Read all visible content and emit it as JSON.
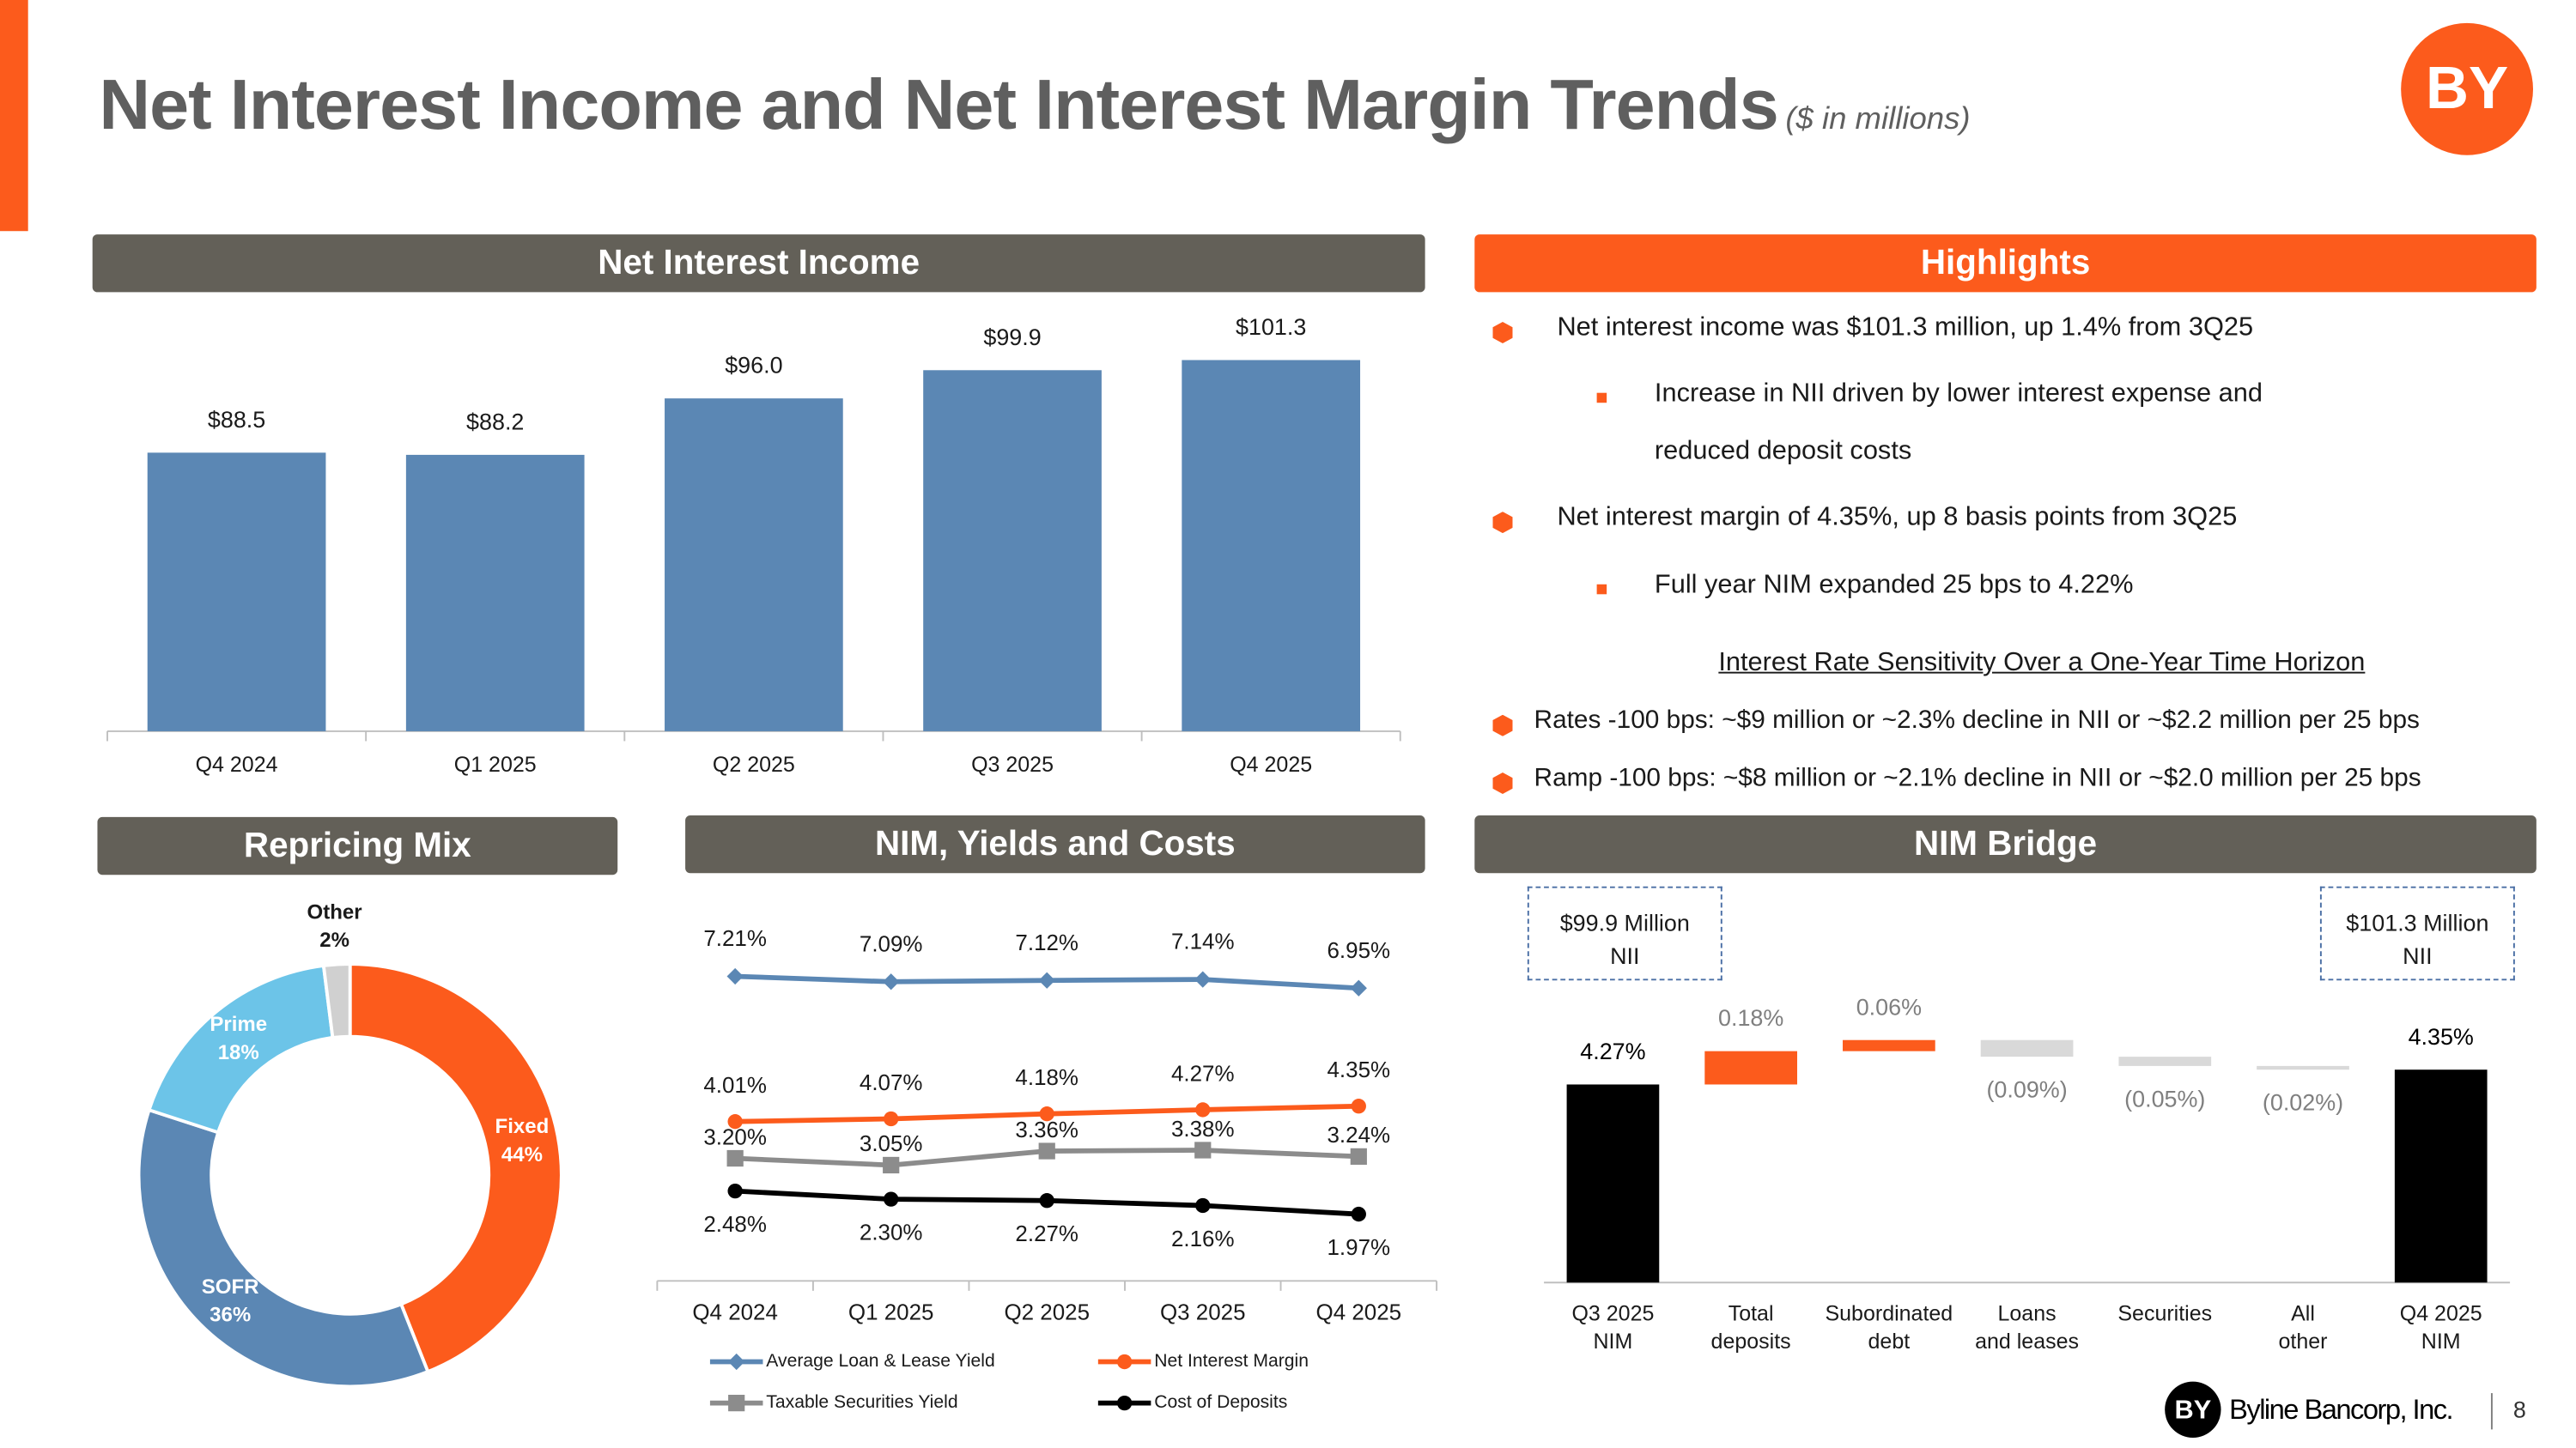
{
  "header": {
    "title": "Net Interest Income and Net Interest Margin Trends",
    "subtitle": "($ in millions)",
    "logo": "BY"
  },
  "highlights": {
    "title": "Highlights",
    "bullets": [
      {
        "text": "Net interest income was $101.3 million, up 1.4% from 3Q25",
        "sub": [
          "Increase in NII driven by lower interest expense and reduced deposit costs"
        ]
      },
      {
        "text": "Net interest margin of 4.35%, up 8 basis points from 3Q25",
        "sub": [
          "Full year NIM expanded 25 bps to 4.22%"
        ]
      }
    ],
    "sensitivity_title": "Interest Rate Sensitivity Over a One-Year Time Horizon",
    "sensitivity": [
      "Rates -100 bps: ~$9 million or ~2.3% decline in NII or ~$2.2 million per 25 bps",
      "Ramp -100 bps: ~$8 million or ~2.1% decline in NII or ~$2.0 million per 25 bps"
    ]
  },
  "footer": {
    "logo": "BY",
    "company": "Byline Bancorp, Inc.",
    "page": "8"
  },
  "chart_data": [
    {
      "type": "bar",
      "title": "Net Interest Income",
      "categories": [
        "Q4 2024",
        "Q1 2025",
        "Q2 2025",
        "Q3 2025",
        "Q4 2025"
      ],
      "values": [
        88.5,
        88.2,
        96.0,
        99.9,
        101.3
      ],
      "value_labels": [
        "$88.5",
        "$88.2",
        "$96.0",
        "$99.9",
        "$101.3"
      ],
      "color": "#5b87b4",
      "ylim": [
        50,
        110
      ]
    },
    {
      "type": "donut",
      "title": "Repricing Mix",
      "categories": [
        "Fixed",
        "SOFR",
        "Prime",
        "Other"
      ],
      "values": [
        44,
        36,
        18,
        2
      ],
      "value_labels": [
        "44%",
        "36%",
        "18%",
        "2%"
      ],
      "colors": [
        "#fc5b1c",
        "#5b87b4",
        "#6cc4e8",
        "#d0d0d0"
      ]
    },
    {
      "type": "line",
      "title": "NIM, Yields and Costs",
      "categories": [
        "Q4 2024",
        "Q1 2025",
        "Q2 2025",
        "Q3 2025",
        "Q4 2025"
      ],
      "ylim": [
        0.5,
        8.5
      ],
      "series": [
        {
          "name": "Average Loan & Lease Yield",
          "color": "#5b87b4",
          "marker": "diamond",
          "values": [
            7.21,
            7.09,
            7.12,
            7.14,
            6.95
          ],
          "value_labels": [
            "7.21%",
            "7.09%",
            "7.12%",
            "7.14%",
            "6.95%"
          ]
        },
        {
          "name": "Net Interest Margin",
          "color": "#fc5b1c",
          "marker": "circle",
          "values": [
            4.01,
            4.07,
            4.18,
            4.27,
            4.35
          ],
          "value_labels": [
            "4.01%",
            "4.07%",
            "4.18%",
            "4.27%",
            "4.35%"
          ]
        },
        {
          "name": "Taxable Securities Yield",
          "color": "#8c8c8c",
          "marker": "square",
          "values": [
            3.2,
            3.05,
            3.36,
            3.38,
            3.24
          ],
          "value_labels": [
            "3.20%",
            "3.05%",
            "3.36%",
            "3.38%",
            "3.24%"
          ]
        },
        {
          "name": "Cost of Deposits",
          "color": "#000000",
          "marker": "circle",
          "values": [
            2.48,
            2.3,
            2.27,
            2.16,
            1.97
          ],
          "value_labels": [
            "2.48%",
            "2.30%",
            "2.27%",
            "2.16%",
            "1.97%"
          ]
        }
      ]
    },
    {
      "type": "waterfall",
      "title": "NIM Bridge",
      "categories": [
        "Q3 2025\nNIM",
        "Total\ndeposits",
        "Subordinated\ndebt",
        "Loans\nand leases",
        "Securities",
        "All\nother",
        "Q4 2025\nNIM"
      ],
      "values": [
        4.27,
        0.18,
        0.06,
        -0.09,
        -0.05,
        -0.02,
        4.35
      ],
      "value_labels": [
        "4.27%",
        "0.18%",
        "0.06%",
        "(0.09%)",
        "(0.05%)",
        "(0.02%)",
        "4.35%"
      ],
      "colors": {
        "total": "#000000",
        "increase": "#fc5b1c",
        "decrease": "#d9d9d9"
      },
      "ylim": [
        3.2,
        4.6
      ],
      "annotations": [
        "$99.9 Million\nNII",
        "$101.3 Million\nNII"
      ]
    }
  ]
}
